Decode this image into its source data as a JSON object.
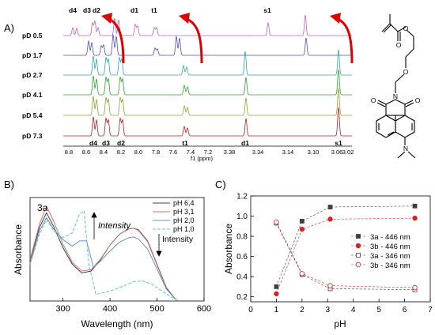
{
  "panels": {
    "a": "A)",
    "b": "B)",
    "c": "C)"
  },
  "nmr": {
    "xlabel": "f1 (ppm)",
    "ticks_left": [
      "8.8",
      "8.6",
      "8.4",
      "8.2",
      "8.0",
      "7.8",
      "7.6",
      "7.4",
      "7.2"
    ],
    "ticks_right": [
      "3.38",
      "3.34",
      "3.14",
      "3.10",
      "3.06",
      "3.02"
    ],
    "series": [
      {
        "name": "pD 0.5",
        "color": "#c060c0"
      },
      {
        "name": "pD 1.7",
        "color": "#5050b8"
      },
      {
        "name": "pD 2.7",
        "color": "#30a8a8"
      },
      {
        "name": "pD 4.1",
        "color": "#30a030"
      },
      {
        "name": "pD 5.4",
        "color": "#90a030"
      },
      {
        "name": "pD 7.3",
        "color": "#b02020"
      }
    ],
    "top_labels": [
      "d4",
      "d3",
      "d2",
      "d1",
      "t1",
      "s1"
    ],
    "bottom_labels": [
      "d4",
      "d3",
      "d2",
      "t1",
      "d1",
      "s1"
    ]
  },
  "structure": {
    "atoms": [
      "O",
      "O",
      "O",
      "N",
      "O",
      "N"
    ]
  },
  "chart_data": [
    {
      "type": "line",
      "title": "3a",
      "xlabel": "Wavelength (nm)",
      "ylabel": "Absorbance",
      "xlim": [
        230,
        600
      ],
      "ylim": [
        0,
        1.55
      ],
      "xticks": [
        "300",
        "400",
        "500",
        "600"
      ],
      "annotations": [
        "Intensity",
        "Intensity"
      ],
      "series": [
        {
          "name": "pH 6,4",
          "color": "#404040",
          "x": [
            230,
            250,
            265,
            280,
            300,
            320,
            340,
            360,
            380,
            400,
            420,
            440,
            450,
            460,
            480,
            500,
            520,
            540
          ],
          "y": [
            0.6,
            1.1,
            1.32,
            1.12,
            0.8,
            0.55,
            0.42,
            0.45,
            0.62,
            0.84,
            1.0,
            1.08,
            1.09,
            1.07,
            0.9,
            0.55,
            0.2,
            0.02
          ]
        },
        {
          "name": "pH 3,1",
          "color": "#d07070",
          "x": [
            230,
            250,
            265,
            280,
            300,
            320,
            340,
            360,
            380,
            400,
            420,
            440,
            450,
            460,
            480,
            500,
            520,
            540
          ],
          "y": [
            0.62,
            1.15,
            1.42,
            1.2,
            0.85,
            0.58,
            0.45,
            0.47,
            0.63,
            0.84,
            1.0,
            1.08,
            1.09,
            1.06,
            0.89,
            0.54,
            0.19,
            0.02
          ]
        },
        {
          "name": "pH 2,0",
          "color": "#6a90c8",
          "x": [
            230,
            250,
            265,
            280,
            300,
            320,
            335,
            350,
            365,
            380,
            400,
            420,
            440,
            450,
            460,
            480,
            500,
            520,
            540
          ],
          "y": [
            0.55,
            1.05,
            1.25,
            1.08,
            0.92,
            0.82,
            0.9,
            0.9,
            0.5,
            0.6,
            0.75,
            0.88,
            0.95,
            0.96,
            0.93,
            0.78,
            0.48,
            0.18,
            0.02
          ]
        },
        {
          "name": "pH 1,0",
          "color": "#60c8b0",
          "x": [
            230,
            250,
            265,
            280,
            300,
            320,
            335,
            345,
            355,
            370,
            390,
            410,
            430,
            450,
            470,
            490,
            510,
            530,
            545
          ],
          "y": [
            0.55,
            1.0,
            1.22,
            1.05,
            0.95,
            1.02,
            1.3,
            1.35,
            0.55,
            0.1,
            0.13,
            0.17,
            0.23,
            0.29,
            0.3,
            0.25,
            0.15,
            0.06,
            0.01
          ]
        }
      ]
    },
    {
      "type": "line",
      "xlabel": "pH",
      "ylabel": "Absorbance",
      "xlim": [
        0,
        7
      ],
      "ylim": [
        0.15,
        1.2
      ],
      "xticks": [
        "0",
        "1",
        "2",
        "3",
        "4",
        "5",
        "6",
        "7"
      ],
      "yticks": [
        "0.2",
        "0.4",
        "0.6",
        "0.8",
        "1.0",
        "1.2"
      ],
      "legend": "right",
      "series": [
        {
          "name": "3a - 446 nm",
          "color": "#404040",
          "marker": "filled-square",
          "x": [
            1.0,
            2.0,
            3.1,
            6.4
          ],
          "y": [
            0.3,
            0.95,
            1.09,
            1.1
          ]
        },
        {
          "name": "3b - 446 nm",
          "color": "#e02020",
          "marker": "filled-circle",
          "x": [
            1.0,
            2.0,
            3.1,
            6.4
          ],
          "y": [
            0.23,
            0.87,
            0.97,
            0.98
          ]
        },
        {
          "name": "3a - 346 nm",
          "color": "#404040",
          "marker": "open-square",
          "x": [
            1.0,
            2.0,
            3.1,
            6.4
          ],
          "y": [
            0.93,
            0.42,
            0.28,
            0.27
          ]
        },
        {
          "name": "3b - 346 nm",
          "color": "#e02020",
          "marker": "open-circle",
          "x": [
            1.0,
            2.0,
            3.1,
            6.4
          ],
          "y": [
            0.94,
            0.43,
            0.31,
            0.29
          ]
        }
      ]
    }
  ]
}
